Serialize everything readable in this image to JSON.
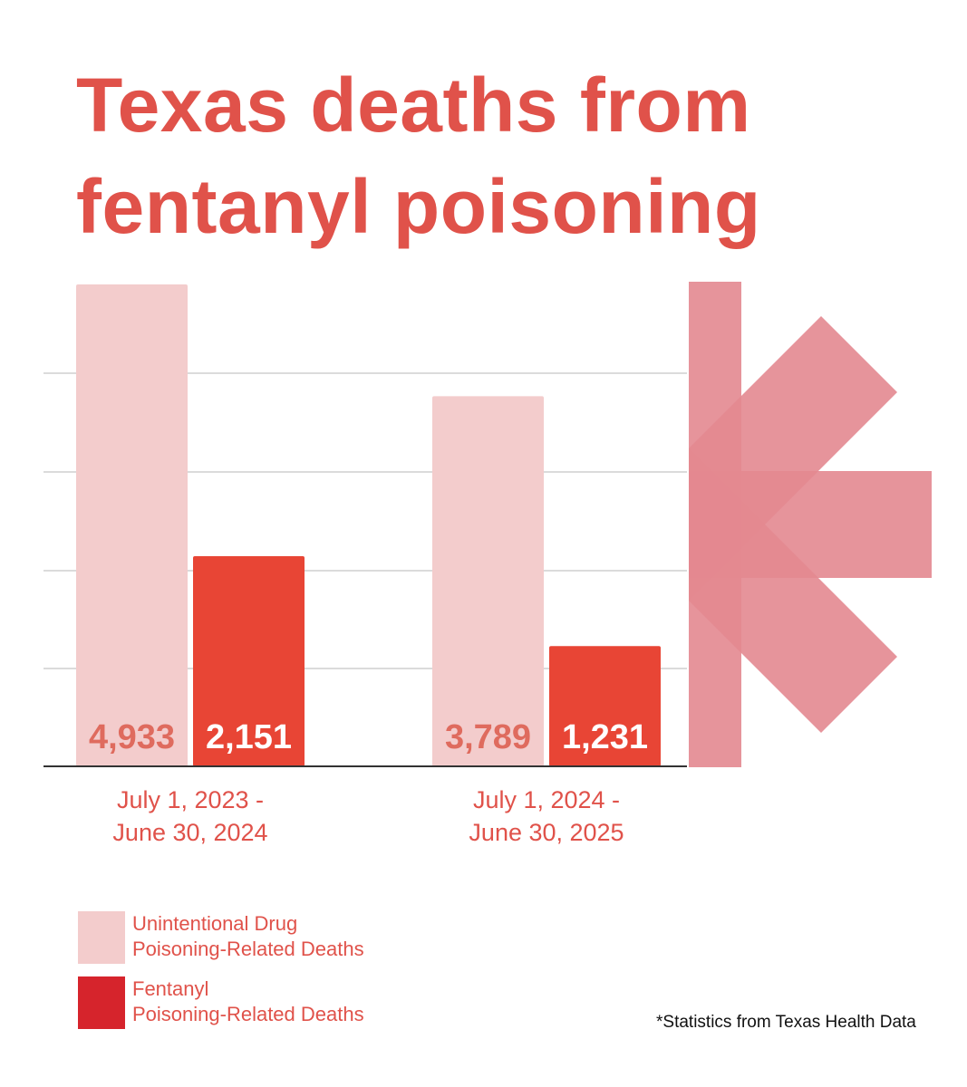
{
  "title": {
    "line1": "Texas deaths from",
    "line2": "fentanyl poisoning"
  },
  "colors": {
    "accent": "#e0524a",
    "unintentional": "#f3cccc",
    "fentanyl": "#e84535",
    "fentanyl_legend": "#d6242c",
    "unintentional_text": "#df6b5e",
    "grid": "#cfcfcf",
    "axis": "#333333",
    "emblem": "#e38890"
  },
  "icons": {
    "emblem": "asterisk-emblem"
  },
  "chart_data": {
    "type": "bar",
    "categories": [
      [
        "July 1, 2023 -",
        "June 30, 2024"
      ],
      [
        "July 1, 2024 -",
        "June 30, 2025"
      ]
    ],
    "series": [
      {
        "name": "Unintentional Drug Poisoning-Related Deaths",
        "values": [
          4933,
          3789
        ],
        "labels": [
          "4,933",
          "3,789"
        ]
      },
      {
        "name": "Fentanyl Poisoning-Related Deaths",
        "values": [
          2151,
          1231
        ],
        "labels": [
          "2,151",
          "1,231"
        ]
      }
    ],
    "ylim": [
      0,
      4933
    ],
    "grid": true,
    "legend": "bottom-left"
  },
  "legend": [
    {
      "line1": "Unintentional Drug",
      "line2": "Poisoning-Related Deaths"
    },
    {
      "line1": "Fentanyl",
      "line2": "Poisoning-Related Deaths"
    }
  ],
  "source": "*Statistics from Texas Health Data"
}
